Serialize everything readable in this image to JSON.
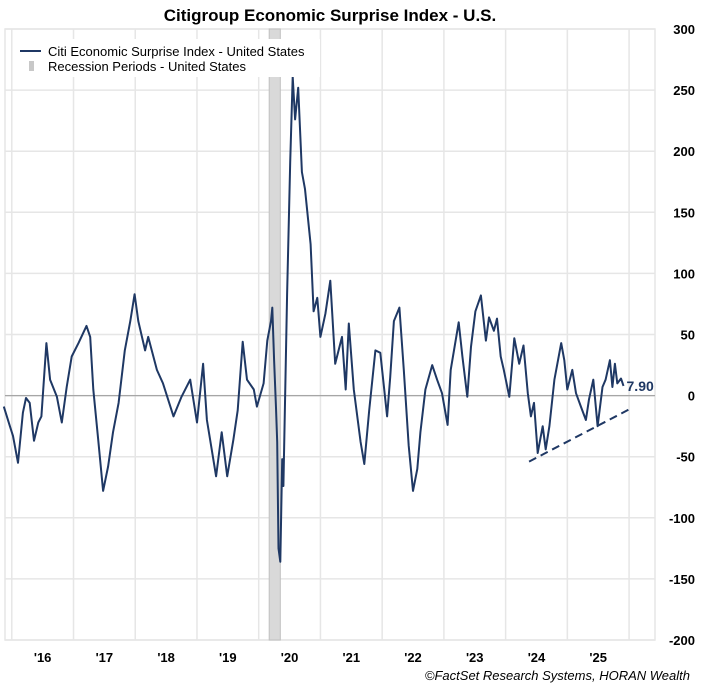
{
  "chart_data": {
    "type": "line",
    "title": "Citigroup Economic Surprise Index - U.S.",
    "xlabel": "",
    "ylabel": "",
    "ylim": [
      -200,
      300
    ],
    "yticks": [
      300,
      250,
      200,
      150,
      100,
      50,
      0,
      -50,
      -100,
      -150,
      -200
    ],
    "xlim": [
      2015.89,
      2026.42
    ],
    "xtick_labels": [
      {
        "label": "'16",
        "year": 2016
      },
      {
        "label": "'17",
        "year": 2017
      },
      {
        "label": "'18",
        "year": 2018
      },
      {
        "label": "'19",
        "year": 2019
      },
      {
        "label": "'20",
        "year": 2020
      },
      {
        "label": "'21",
        "year": 2021
      },
      {
        "label": "'22",
        "year": 2022
      },
      {
        "label": "'23",
        "year": 2023
      },
      {
        "label": "'24",
        "year": 2024
      },
      {
        "label": "'25",
        "year": 2025
      }
    ],
    "grid": true,
    "legend_position": "top-left",
    "legend": [
      {
        "label": "Citi Economic Surprise Index - United States",
        "kind": "line"
      },
      {
        "label": "Recession Periods - United States",
        "kind": "band"
      }
    ],
    "colors": {
      "series": "#1f3864",
      "recession": "#d9d9d9",
      "grid": "#e6e6e6",
      "zero_line": "#a6a6a6"
    },
    "series": [
      {
        "name": "Citi Economic Surprise Index - United States",
        "x": [
          2015.87,
          2015.97,
          2016.02,
          2016.1,
          2016.18,
          2016.23,
          2016.29,
          2016.36,
          2016.43,
          2016.48,
          2016.56,
          2016.62,
          2016.73,
          2016.81,
          2016.89,
          2016.97,
          2017.08,
          2017.21,
          2017.27,
          2017.32,
          2017.4,
          2017.48,
          2017.56,
          2017.64,
          2017.73,
          2017.83,
          2017.92,
          2017.99,
          2018.05,
          2018.16,
          2018.21,
          2018.35,
          2018.45,
          2018.62,
          2018.75,
          2018.89,
          2019.0,
          2019.1,
          2019.16,
          2019.31,
          2019.4,
          2019.49,
          2019.59,
          2019.66,
          2019.74,
          2019.81,
          2019.92,
          2019.97,
          2020.08,
          2020.14,
          2020.2,
          2020.22,
          2020.25,
          2020.28,
          2020.3,
          2020.32,
          2020.35,
          2020.38,
          2020.4,
          2020.46,
          2020.51,
          2020.55,
          2020.59,
          2020.64,
          2020.7,
          2020.75,
          2020.84,
          2020.89,
          2020.95,
          2021.0,
          2021.08,
          2021.16,
          2021.24,
          2021.35,
          2021.41,
          2021.46,
          2021.54,
          2021.65,
          2021.71,
          2021.79,
          2021.89,
          2021.97,
          2022.08,
          2022.13,
          2022.19,
          2022.28,
          2022.35,
          2022.43,
          2022.5,
          2022.57,
          2022.62,
          2022.7,
          2022.81,
          2022.89,
          2022.97,
          2023.06,
          2023.11,
          2023.24,
          2023.3,
          2023.38,
          2023.44,
          2023.51,
          2023.6,
          2023.68,
          2023.73,
          2023.81,
          2023.86,
          2023.92,
          2023.97,
          2024.06,
          2024.14,
          2024.22,
          2024.29,
          2024.36,
          2024.41,
          2024.46,
          2024.52,
          2024.6,
          2024.65,
          2024.71,
          2024.79,
          2024.9,
          2024.95,
          2025.0,
          2025.08,
          2025.14,
          2025.22,
          2025.3,
          2025.35,
          2025.42,
          2025.49,
          2025.57,
          2025.62,
          2025.69,
          2025.73,
          2025.77,
          2025.81,
          2025.87,
          2025.91
        ],
        "y": [
          -9,
          -25,
          -33,
          -55,
          -14,
          -2,
          -6,
          -37,
          -22,
          -17,
          43,
          13,
          -1,
          -22,
          7,
          32,
          43,
          57,
          48,
          5,
          -36,
          -78,
          -58,
          -30,
          -6,
          37,
          61,
          83,
          61,
          37,
          48,
          21,
          10,
          -17,
          -1,
          13,
          -22,
          26,
          -20,
          -66,
          -30,
          -66,
          -36,
          -12,
          44,
          13,
          5,
          -9,
          10,
          45,
          61,
          72,
          29,
          -10,
          -38,
          -125,
          -136,
          -52,
          -74,
          83,
          191,
          261,
          226,
          252,
          183,
          169,
          124,
          69,
          80,
          48,
          67,
          94,
          26,
          48,
          5,
          59,
          5,
          -38,
          -56,
          -12,
          37,
          35,
          -17,
          15,
          61,
          72,
          21,
          -41,
          -78,
          -60,
          -30,
          5,
          25,
          13,
          2,
          -24,
          21,
          60,
          32,
          -1,
          40,
          69,
          82,
          45,
          64,
          53,
          63,
          32,
          21,
          -1,
          47,
          26,
          41,
          2,
          -17,
          -6,
          -47,
          -25,
          -44,
          -25,
          13,
          43,
          29,
          5,
          21,
          2,
          -9,
          -20,
          -3,
          13,
          -25,
          7,
          13,
          29,
          7,
          26,
          10,
          14,
          7.9
        ]
      }
    ],
    "recession_periods": [
      {
        "start": 2020.17,
        "end": 2020.35
      }
    ],
    "trendline": {
      "x": [
        2024.38,
        2026.05
      ],
      "y": [
        -54,
        -10
      ],
      "style": "dashed"
    },
    "last_value_label": "7.90"
  },
  "footer": {
    "source": "©FactSet Research Systems, HORAN Wealth"
  }
}
